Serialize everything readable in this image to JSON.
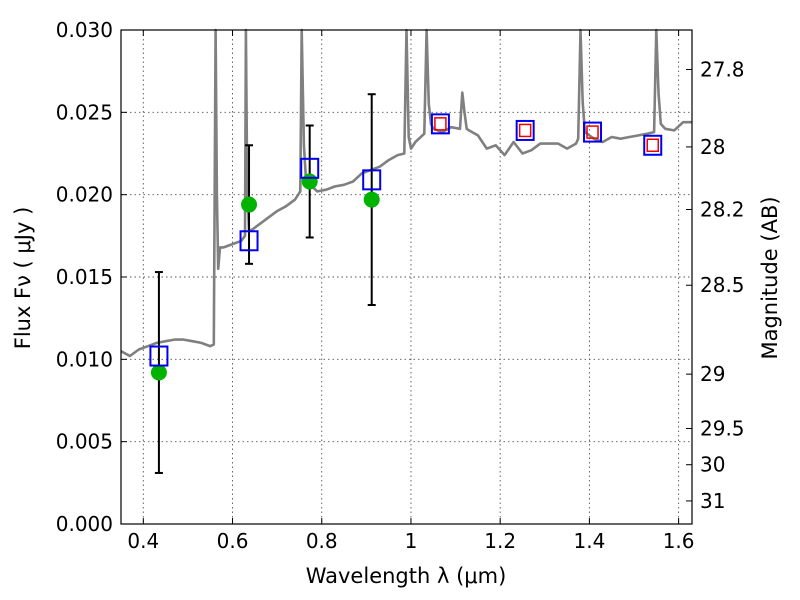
{
  "chart_data": {
    "type": "scatter",
    "xlabel": "Wavelength  λ (μm)",
    "ylabel": "Flux  Fν  ( μJy )",
    "y2label": "Magnitude (AB)",
    "xlim": [
      0.35,
      1.63
    ],
    "ylim": [
      0.0,
      0.03
    ],
    "grid": true,
    "x_ticks": [
      0.4,
      0.6,
      0.8,
      1.0,
      1.2,
      1.4,
      1.6
    ],
    "x_tick_labels": [
      "0.4",
      "0.6",
      "0.8",
      "1",
      "1.2",
      "1.4",
      "1.6"
    ],
    "y_ticks": [
      0.0,
      0.005,
      0.01,
      0.015,
      0.02,
      0.025,
      0.03
    ],
    "y_tick_labels": [
      "0.000",
      "0.005",
      "0.010",
      "0.015",
      "0.020",
      "0.025",
      "0.030"
    ],
    "y2_ticks": [
      {
        "label": "27.8",
        "flux": 0.0276
      },
      {
        "label": "28",
        "flux": 0.0229
      },
      {
        "label": "28.2",
        "flux": 0.0191
      },
      {
        "label": "28.5",
        "flux": 0.0145
      },
      {
        "label": "29",
        "flux": 0.0091
      },
      {
        "label": "29.5",
        "flux": 0.0058
      },
      {
        "label": "30",
        "flux": 0.0036
      },
      {
        "label": "31",
        "flux": 0.0014
      }
    ],
    "colors": {
      "sed": "#808080",
      "photometry": "#00b300",
      "model_box": "#0000ee",
      "model_box_inner": "#ee0000",
      "errorbar": "#000000",
      "grid": "#555555"
    },
    "series": [
      {
        "kind": "line",
        "x": [
          0.35,
          0.37,
          0.39,
          0.41,
          0.43,
          0.45,
          0.47,
          0.49,
          0.51,
          0.53,
          0.55,
          0.558,
          0.562,
          0.565,
          0.568,
          0.572,
          0.58,
          0.6,
          0.62,
          0.628,
          0.63,
          0.633,
          0.637,
          0.64,
          0.66,
          0.68,
          0.7,
          0.72,
          0.74,
          0.752,
          0.755,
          0.76,
          0.765,
          0.77,
          0.79,
          0.81,
          0.83,
          0.85,
          0.87,
          0.89,
          0.91,
          0.93,
          0.95,
          0.97,
          0.985,
          0.99,
          0.995,
          1.0,
          1.01,
          1.03,
          1.035,
          1.04,
          1.045,
          1.05,
          1.07,
          1.09,
          1.11,
          1.115,
          1.12,
          1.125,
          1.13,
          1.15,
          1.17,
          1.19,
          1.21,
          1.23,
          1.25,
          1.27,
          1.29,
          1.31,
          1.33,
          1.35,
          1.37,
          1.375,
          1.38,
          1.385,
          1.39,
          1.41,
          1.43,
          1.45,
          1.47,
          1.49,
          1.51,
          1.53,
          1.545,
          1.55,
          1.555,
          1.56,
          1.57,
          1.59,
          1.61,
          1.63
        ],
        "y": [
          0.0105,
          0.0102,
          0.0106,
          0.0108,
          0.011,
          0.0111,
          0.0112,
          0.0112,
          0.0111,
          0.011,
          0.0108,
          0.0109,
          0.03,
          0.02,
          0.0155,
          0.0168,
          0.0168,
          0.017,
          0.0172,
          0.0175,
          0.03,
          0.0205,
          0.0178,
          0.0178,
          0.0182,
          0.0186,
          0.019,
          0.0193,
          0.0197,
          0.0202,
          0.03,
          0.023,
          0.0208,
          0.0207,
          0.0202,
          0.0203,
          0.0205,
          0.0206,
          0.0208,
          0.0213,
          0.0215,
          0.0217,
          0.0221,
          0.0224,
          0.0225,
          0.03,
          0.0235,
          0.0228,
          0.0232,
          0.0237,
          0.03,
          0.0255,
          0.0243,
          0.024,
          0.0238,
          0.0241,
          0.024,
          0.0262,
          0.025,
          0.024,
          0.0239,
          0.0236,
          0.0228,
          0.023,
          0.0224,
          0.0232,
          0.0225,
          0.0227,
          0.0231,
          0.0231,
          0.0231,
          0.0228,
          0.0231,
          0.0234,
          0.03,
          0.0256,
          0.0238,
          0.0234,
          0.0232,
          0.0235,
          0.0234,
          0.0235,
          0.0236,
          0.0237,
          0.0238,
          0.03,
          0.0262,
          0.0243,
          0.024,
          0.0239,
          0.0244,
          0.0244
        ]
      },
      {
        "kind": "photometry_points",
        "x": [
          0.435,
          0.637,
          0.773,
          0.912
        ],
        "y": [
          0.0092,
          0.0194,
          0.0208,
          0.0197
        ],
        "yerr": [
          0.0061,
          0.0036,
          0.0034,
          0.0064
        ]
      },
      {
        "kind": "model_boxes",
        "x": [
          0.435,
          0.637,
          0.773,
          0.912,
          1.066,
          1.256,
          1.407,
          1.542
        ],
        "y": [
          0.0102,
          0.0172,
          0.0216,
          0.0209,
          0.0243,
          0.0239,
          0.0238,
          0.023
        ],
        "inner_box": [
          false,
          false,
          false,
          false,
          true,
          true,
          true,
          true
        ]
      }
    ]
  }
}
